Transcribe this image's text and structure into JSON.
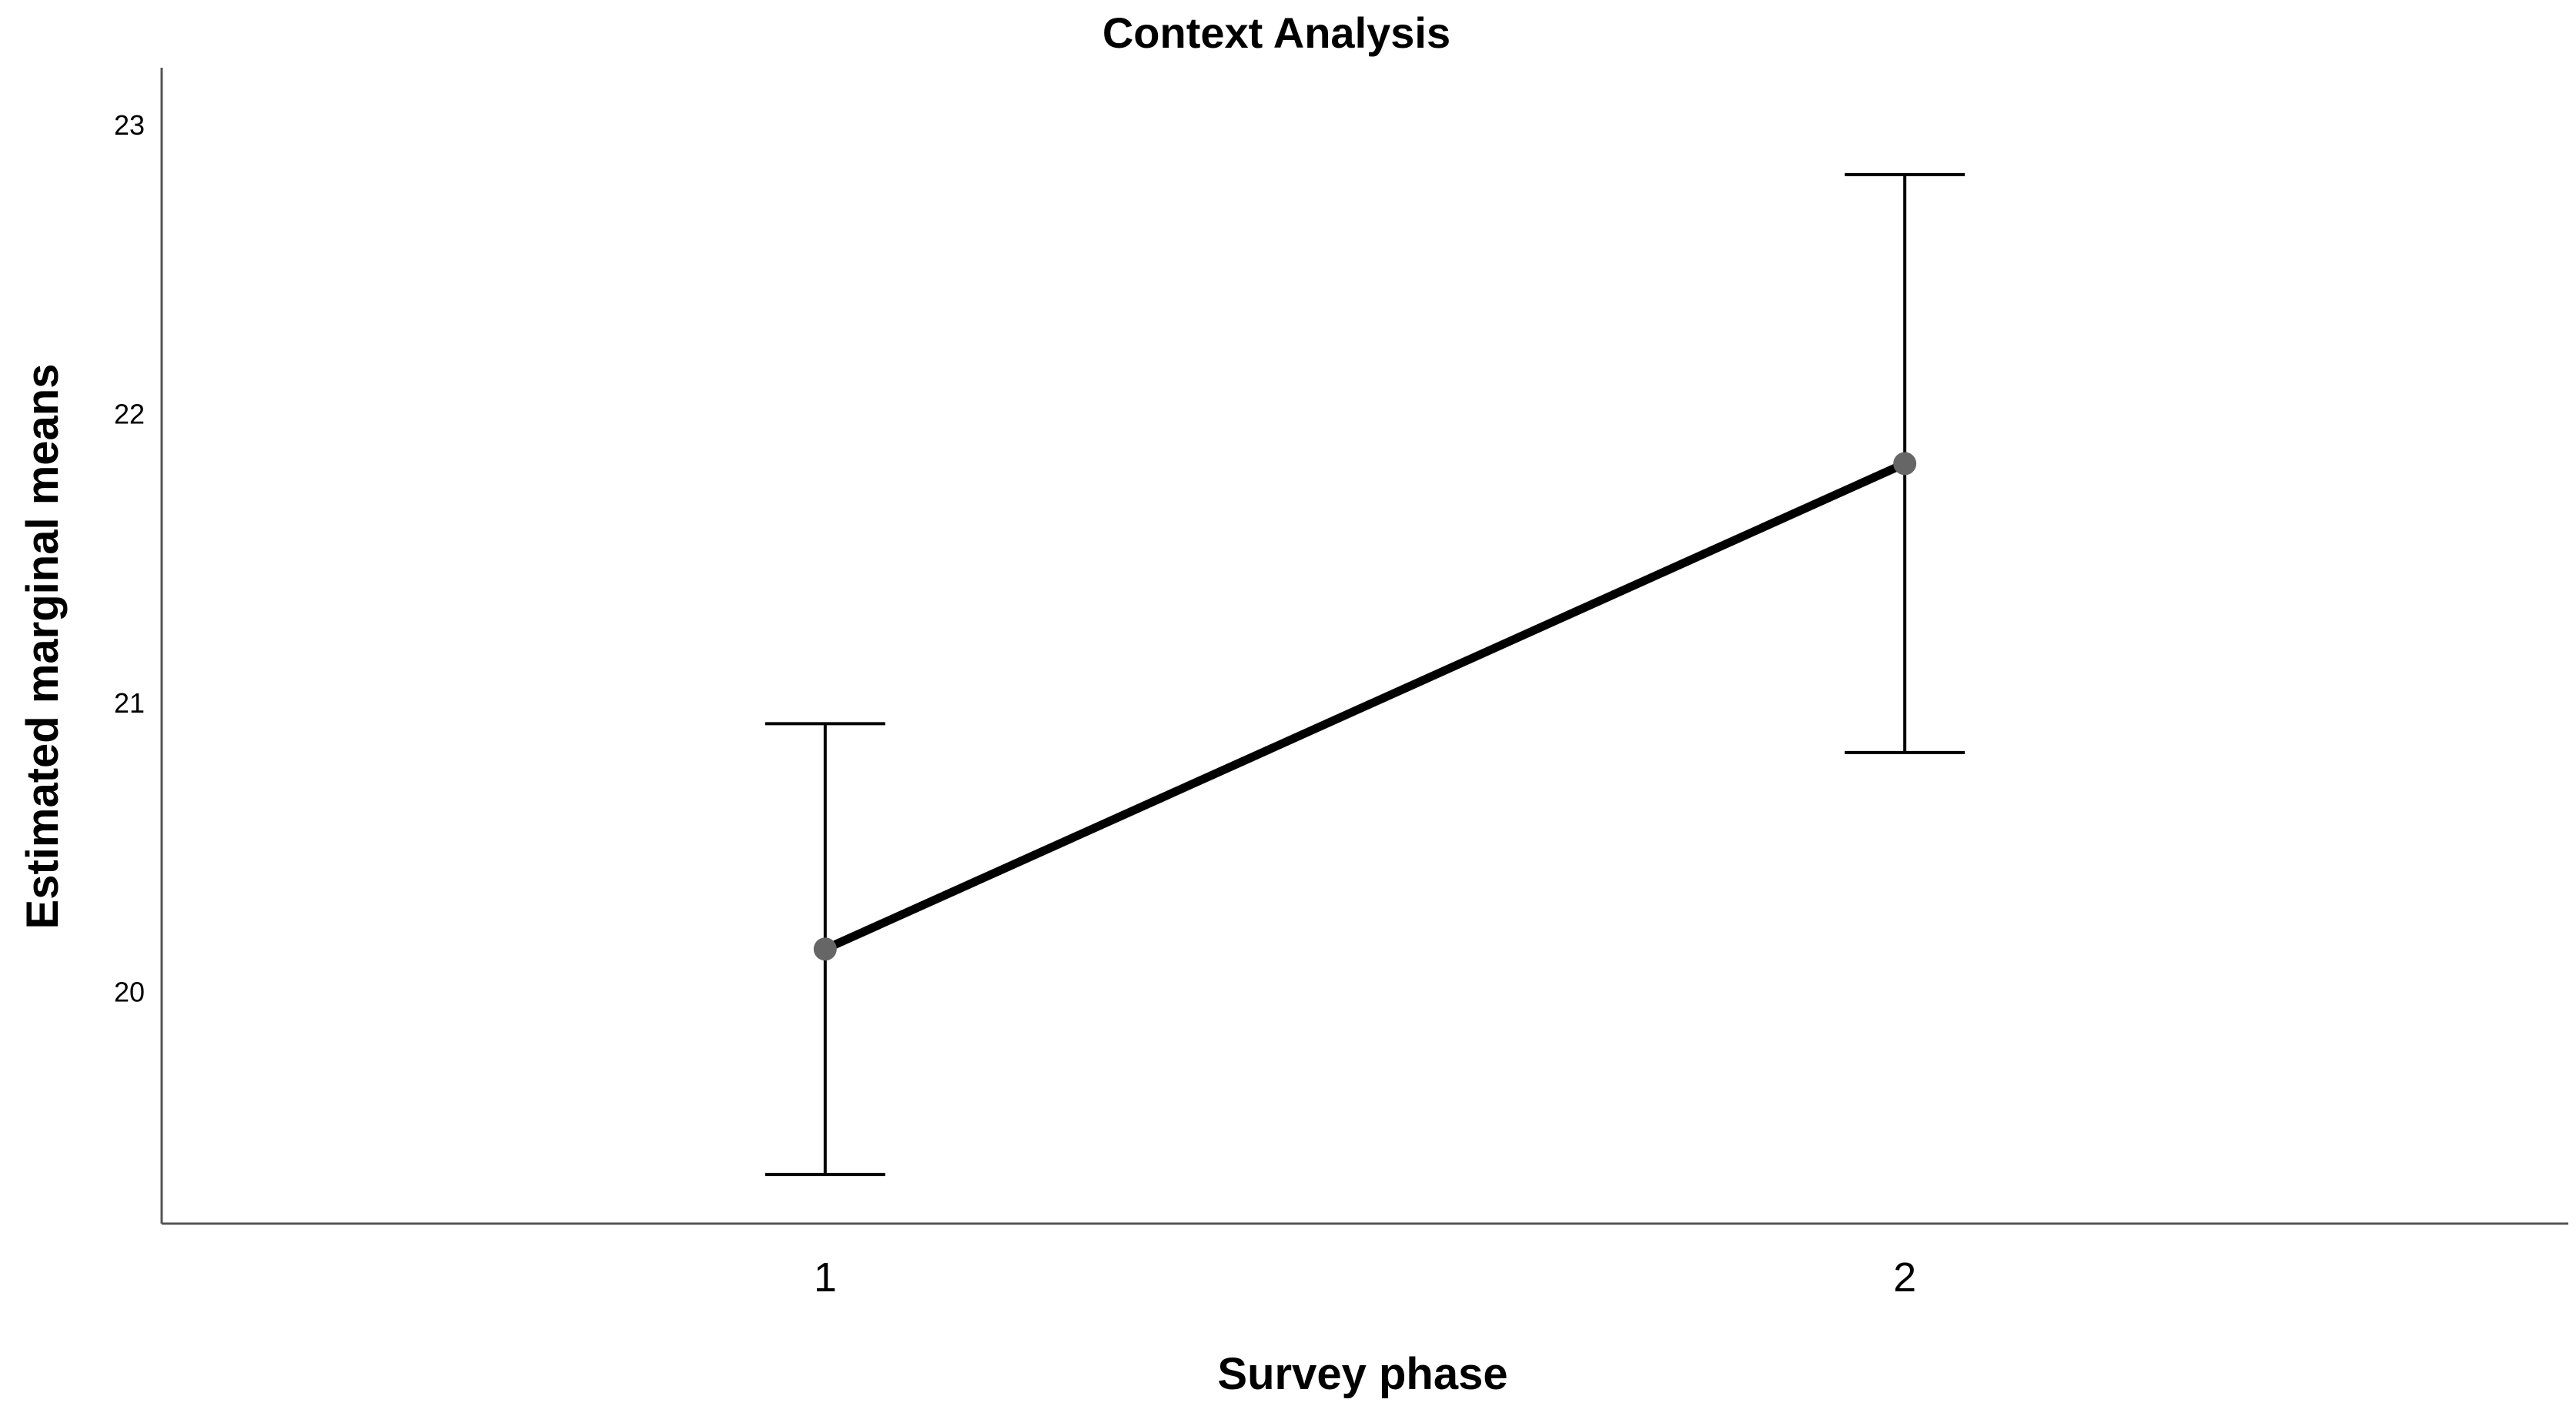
{
  "chart_data": {
    "type": "line",
    "title": "Context Analysis",
    "xlabel": "Survey phase",
    "ylabel": "Estimated marginal means",
    "categories": [
      "1",
      "2"
    ],
    "values": [
      20.15,
      21.83
    ],
    "error_low": [
      19.37,
      20.83
    ],
    "error_high": [
      20.93,
      22.83
    ],
    "y_ticks": [
      20,
      21,
      22,
      23
    ],
    "ylim": [
      19.2,
      23.2
    ],
    "grid": false,
    "legend": "none",
    "colors": {
      "line": "#000000",
      "marker": "#666666",
      "error_bar": "#000000",
      "axis": "#555555"
    }
  }
}
